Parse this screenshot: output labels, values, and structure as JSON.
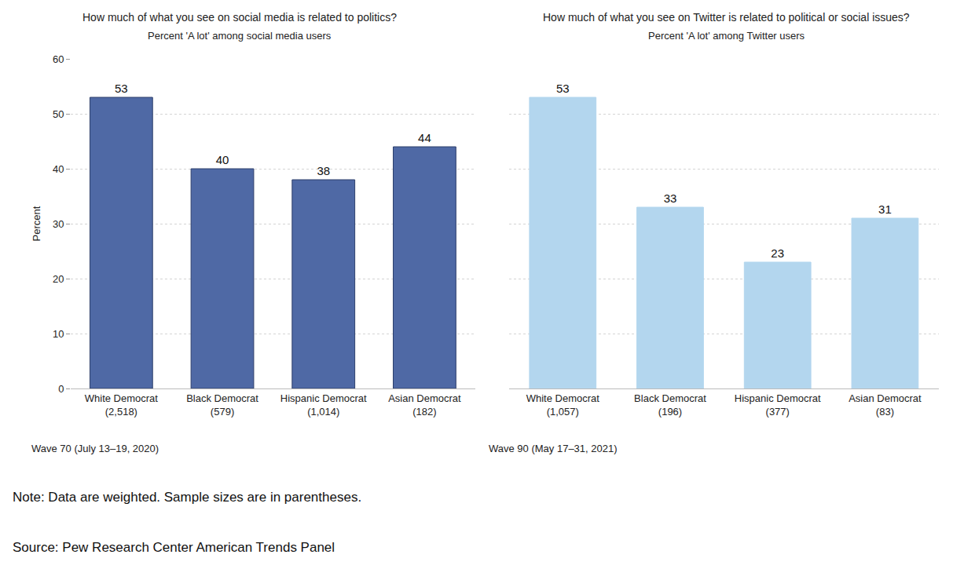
{
  "chart_data": [
    {
      "type": "bar",
      "title": "How much of what you see on social media is related to politics?",
      "subtitle": "Percent 'A lot' among social media users",
      "y_label": "Percent",
      "categories": [
        "White Democrat (2,518)",
        "Black Democrat (579)",
        "Hispanic Democrat (1,014)",
        "Asian Democrat (182)"
      ],
      "values": [
        53,
        40,
        38,
        44
      ],
      "color": "#4f69a5",
      "ylim": [
        0,
        60
      ],
      "yticks": [
        0,
        10,
        20,
        30,
        40,
        50,
        60
      ],
      "grid": true,
      "data_labels": true,
      "annotations": [
        "Wave 70 (July 13–19, 2020)"
      ]
    },
    {
      "type": "bar",
      "title": "How much of what you see on Twitter is related to political or social issues?",
      "subtitle": "Percent 'A lot' among Twitter users",
      "categories": [
        "White Democrat (1,057)",
        "Black Democrat (196)",
        "Hispanic Democrat (377)",
        "Asian Democrat (83)"
      ],
      "values": [
        53,
        33,
        23,
        31
      ],
      "color": "#b3d6ee",
      "ylim": [
        0,
        60
      ],
      "yticks": [
        0,
        10,
        20,
        30,
        40,
        50,
        60
      ],
      "grid": true,
      "data_labels": true,
      "tick_labels": "x",
      "annotations": [
        "Wave 90 (May 17–31, 2021)"
      ]
    }
  ],
  "note": "Note: Data are weighted. Sample sizes are in parentheses.",
  "source": "Source: Pew Research Center American Trends Panel"
}
